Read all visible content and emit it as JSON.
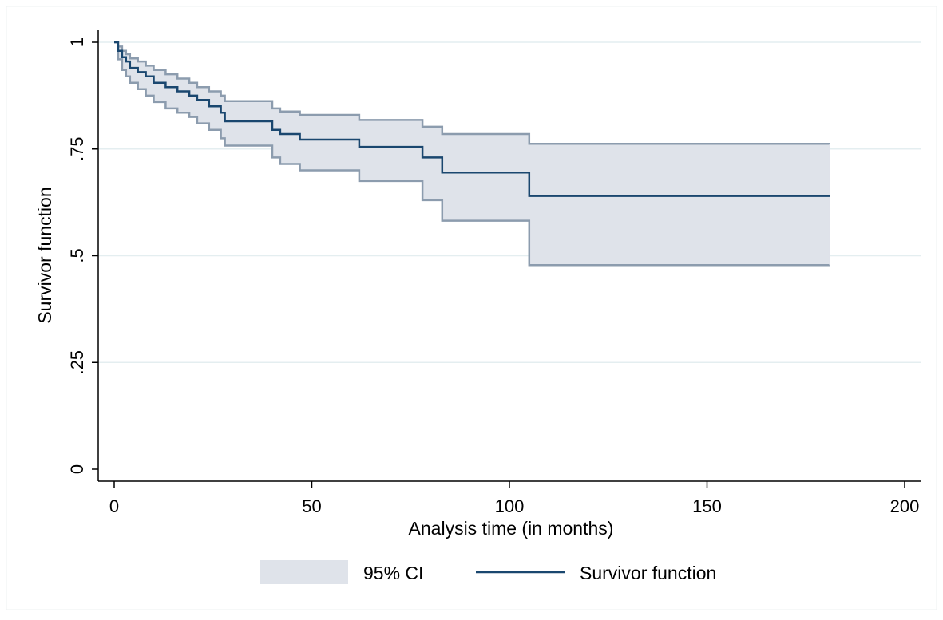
{
  "chart_data": {
    "type": "line",
    "title": "",
    "xlabel": "Analysis time (in months)",
    "ylabel": "Survivor function",
    "xlim": [
      0,
      200
    ],
    "ylim": [
      0,
      1
    ],
    "x_ticks": [
      0,
      50,
      100,
      150,
      200
    ],
    "x_tick_labels": [
      "0",
      "50",
      "100",
      "150",
      "200"
    ],
    "y_ticks": [
      0,
      0.25,
      0.5,
      0.75,
      1
    ],
    "y_tick_labels": [
      "0",
      ".25",
      ".5",
      ".75",
      "1"
    ],
    "grid": "horizontal",
    "legend_position": "bottom",
    "colors": {
      "survivor_line": "#1a476f",
      "ci_fill": "#dfe3ea",
      "ci_edge": "#8c9cae",
      "grid": "#e4eef0"
    },
    "series": [
      {
        "name": "Survivor function",
        "kind": "step-line",
        "x": [
          0,
          1,
          2,
          3,
          4,
          6,
          8,
          10,
          13,
          16,
          19,
          21,
          24,
          27,
          28,
          40,
          42,
          47,
          62,
          78,
          80,
          83,
          105,
          181
        ],
        "y": [
          1,
          0.98,
          0.965,
          0.955,
          0.94,
          0.93,
          0.92,
          0.905,
          0.895,
          0.885,
          0.875,
          0.865,
          0.85,
          0.835,
          0.815,
          0.795,
          0.785,
          0.772,
          0.755,
          0.73,
          0.73,
          0.695,
          0.64,
          0.64
        ]
      },
      {
        "name": "95% CI",
        "kind": "band",
        "x": [
          0,
          1,
          2,
          3,
          4,
          6,
          8,
          10,
          13,
          16,
          19,
          21,
          24,
          27,
          28,
          40,
          42,
          47,
          62,
          78,
          80,
          83,
          105,
          181
        ],
        "lower": [
          1,
          0.96,
          0.935,
          0.92,
          0.905,
          0.89,
          0.875,
          0.86,
          0.845,
          0.835,
          0.825,
          0.81,
          0.795,
          0.775,
          0.758,
          0.73,
          0.715,
          0.7,
          0.675,
          0.63,
          0.63,
          0.582,
          0.478,
          0.478
        ],
        "upper": [
          1,
          0.99,
          0.98,
          0.972,
          0.962,
          0.955,
          0.945,
          0.935,
          0.925,
          0.915,
          0.905,
          0.895,
          0.885,
          0.875,
          0.862,
          0.845,
          0.838,
          0.83,
          0.818,
          0.802,
          0.802,
          0.785,
          0.762,
          0.762
        ]
      }
    ]
  }
}
